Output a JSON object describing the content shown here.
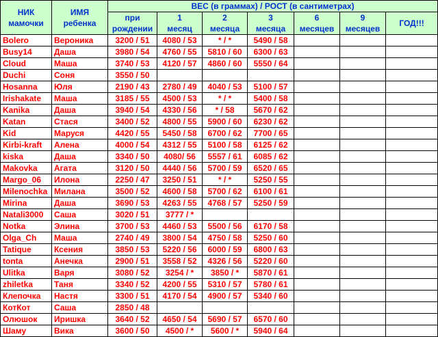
{
  "headers": {
    "nick_line1": "НИК",
    "nick_line2": "мамочки",
    "child_line1": "ИМЯ",
    "child_line2": "ребенка",
    "group_title": "ВЕС (в граммах) / РОСТ (в сантиметрах)",
    "periods": [
      {
        "top": "при",
        "bottom": "рождении"
      },
      {
        "top": "1",
        "bottom": "месяц"
      },
      {
        "top": "2",
        "bottom": "месяца"
      },
      {
        "top": "3",
        "bottom": "месяца"
      },
      {
        "top": "6",
        "bottom": "месяцев"
      },
      {
        "top": "9",
        "bottom": "месяцев"
      },
      {
        "top": "",
        "bottom": "ГОД!!!"
      }
    ]
  },
  "rows": [
    {
      "nick": "Bolero",
      "child": "Вероника",
      "v": [
        "3200 / 51",
        "4080 / 53",
        "* / *",
        "5490 / 58",
        "",
        "",
        ""
      ]
    },
    {
      "nick": "Busy14",
      "child": "Даша",
      "v": [
        "3980 / 54",
        "4760 / 55",
        "5810 / 60",
        "6300 / 63",
        "",
        "",
        ""
      ]
    },
    {
      "nick": "Cloud",
      "child": "Маша",
      "v": [
        "3740 / 53",
        "4120 / 57",
        "4860 / 60",
        "5550 / 64",
        "",
        "",
        ""
      ]
    },
    {
      "nick": "Duchi",
      "child": "Соня",
      "v": [
        "3550 / 50",
        "",
        "",
        "",
        "",
        "",
        ""
      ]
    },
    {
      "nick": "Hosanna",
      "child": "Юля",
      "v": [
        "2190 / 43",
        "2780 / 49",
        "4040 / 53",
        "5100 / 57",
        "",
        "",
        ""
      ]
    },
    {
      "nick": "Irishakate",
      "child": "Маша",
      "v": [
        "3185 / 55",
        "4500 / 53",
        "* / *",
        "5400 / 58",
        "",
        "",
        ""
      ]
    },
    {
      "nick": "Kanika",
      "child": "Даша",
      "v": [
        "3940 / 54",
        "4330 / 56",
        "* / 58",
        "5670 / 62",
        "",
        "",
        ""
      ]
    },
    {
      "nick": "Katan",
      "child": "Стася",
      "v": [
        "3400 / 52",
        "4800 / 55",
        "5900 / 60",
        "6230 / 62",
        "",
        "",
        ""
      ]
    },
    {
      "nick": "Kid",
      "child": "Маруся",
      "v": [
        "4420 / 55",
        "5450 / 58",
        "6700 / 62",
        "7700 / 65",
        "",
        "",
        ""
      ]
    },
    {
      "nick": "Kirbi-kraft",
      "child": "Алена",
      "v": [
        "4000 / 54",
        "4312 / 55",
        "5100 / 58",
        "6125 / 62",
        "",
        "",
        ""
      ]
    },
    {
      "nick": "kiska",
      "child": "Даша",
      "v": [
        "3340 / 50",
        "4080/ 56",
        "5557 / 61",
        "6085 / 62",
        "",
        "",
        ""
      ]
    },
    {
      "nick": "Makovka",
      "child": "Агата",
      "v": [
        "3120 / 50",
        "4440 / 56",
        "5700 / 59",
        "6520 / 65",
        "",
        "",
        ""
      ]
    },
    {
      "nick": "Margo_06",
      "child": "Илона",
      "v": [
        "2250 / 47",
        "3250 / 51",
        "* / *",
        "5250 / 55",
        "",
        "",
        ""
      ]
    },
    {
      "nick": "Milenochka",
      "child": "Милана",
      "v": [
        "3500 / 52",
        "4600 / 58",
        "5700 / 62",
        "6100 / 61",
        "",
        "",
        ""
      ]
    },
    {
      "nick": "Mirina",
      "child": "Даша",
      "v": [
        "3690 / 53",
        "4263 / 55",
        "4768 / 57",
        "5250 / 59",
        "",
        "",
        ""
      ]
    },
    {
      "nick": "Natali3000",
      "child": "Саша",
      "v": [
        "3020 / 51",
        "3777 / *",
        "",
        "",
        "",
        "",
        ""
      ]
    },
    {
      "nick": "Notka",
      "child": "Элина",
      "v": [
        "3700 / 53",
        "4460 / 53",
        "5500 / 56",
        "6170 / 58",
        "",
        "",
        ""
      ]
    },
    {
      "nick": "Olga_Ch",
      "child": "Маша",
      "v": [
        "2740 / 49",
        "3800 / 54",
        "4750 / 58",
        "5250 / 60",
        "",
        "",
        ""
      ]
    },
    {
      "nick": "Tatique",
      "child": "Ксения",
      "v": [
        "3850 / 53",
        "5220 / 56",
        "6000 / 59",
        "6800 / 63",
        "",
        "",
        ""
      ]
    },
    {
      "nick": "tonta",
      "child": "Анечка",
      "v": [
        "2900 / 51",
        "3558 / 52",
        "4326 / 56",
        "5220 / 60",
        "",
        "",
        ""
      ]
    },
    {
      "nick": "Ulitka",
      "child": "Варя",
      "v": [
        "3080 / 52",
        "3254 / *",
        "3850 / *",
        "5870 / 61",
        "",
        "",
        ""
      ]
    },
    {
      "nick": "zhiletka",
      "child": "Таня",
      "v": [
        "3340 / 52",
        "4200 / 55",
        "5310 / 57",
        "5780 / 61",
        "",
        "",
        ""
      ]
    },
    {
      "nick": "Клепочка",
      "child": "Настя",
      "v": [
        "3300 / 51",
        "4170 / 54",
        "4900 / 57",
        "5340 / 60",
        "",
        "",
        ""
      ]
    },
    {
      "nick": "КотКот",
      "child": "Саша",
      "v": [
        "2850 / 48",
        "",
        "",
        "",
        "",
        "",
        ""
      ]
    },
    {
      "nick": "Олюшок",
      "child": "Иришка",
      "v": [
        "3640 / 52",
        "4650 / 54",
        "5690 / 57",
        "6570 / 60",
        "",
        "",
        ""
      ]
    },
    {
      "nick": "Шаму",
      "child": "Вика",
      "v": [
        "3600 / 50",
        "4500 / *",
        "5600 / *",
        "5940 / 64",
        "",
        "",
        ""
      ]
    }
  ]
}
